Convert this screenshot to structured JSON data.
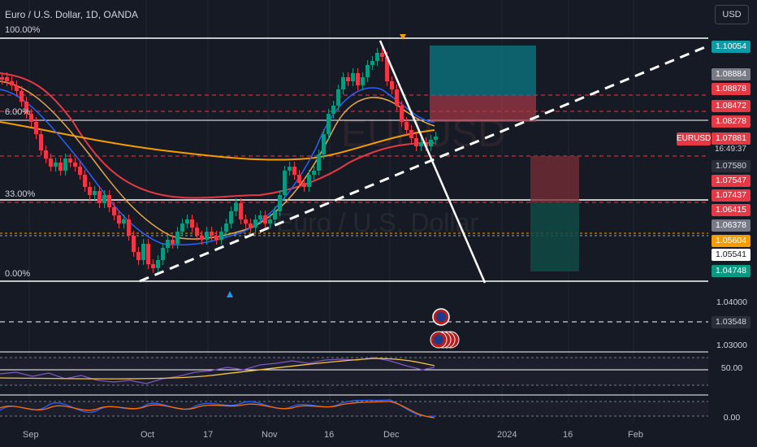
{
  "header": {
    "title": "Euro / U.S. Dollar, 1D, OANDA",
    "currency_button": "USD"
  },
  "fib_levels": {
    "top": "100.00%",
    "mid1": "6.00%",
    "mid2": "33.00%",
    "bottom": "0.00%"
  },
  "price_axis": {
    "labels": [
      {
        "text": "1.10054",
        "bg": "#0b9aa6"
      },
      {
        "text": "1.08884",
        "bg": "#787b86"
      },
      {
        "text": "1.08878",
        "bg": "#e53945"
      },
      {
        "text": "1.08472",
        "bg": "#e53945"
      },
      {
        "text": "1.08278",
        "bg": "#e53945"
      },
      {
        "text": "1.07580",
        "bg": "#2a2e39"
      },
      {
        "text": "1.07547",
        "bg": "#e53945"
      },
      {
        "text": "1.07437",
        "bg": "#e53945"
      },
      {
        "text": "1.06415",
        "bg": "#e53945"
      },
      {
        "text": "1.06378",
        "bg": "#787b86"
      },
      {
        "text": "1.05604",
        "bg": "#f59d00"
      },
      {
        "text": "1.05541",
        "bg": "#ffffff"
      },
      {
        "text": "1.04748",
        "bg": "#089981"
      },
      {
        "text": "1.03548",
        "bg": "#2a2e39"
      }
    ],
    "plain_labels": [
      "1.04000",
      "1.03000"
    ],
    "symbol_badge": "EURUSD",
    "last_price": "1.07881",
    "countdown": "16:49:37"
  },
  "indicators": {
    "rsi_label": "50.00",
    "stoch_label": "0.00"
  },
  "time_axis": [
    "Sep",
    "Oct",
    "17",
    "Nov",
    "16",
    "Dec",
    "2024",
    "16",
    "Feb"
  ],
  "colors": {
    "background": "#161a25",
    "bull": "#089981",
    "bear": "#f23645",
    "accent_teal": "#0b9aa6"
  },
  "icons": [
    "us-flag-event-icon",
    "triangle-up-marker-icon",
    "triangle-down-marker-icon"
  ]
}
